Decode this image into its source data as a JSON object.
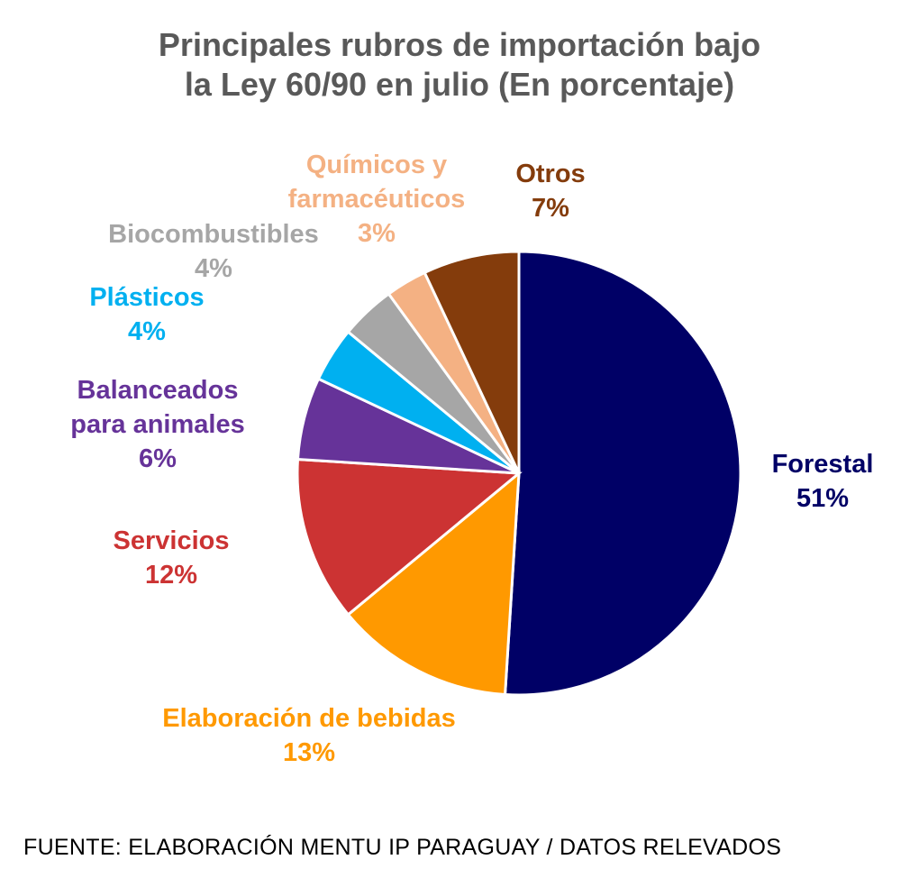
{
  "chart_data": {
    "type": "pie",
    "title_lines": [
      "Principales rubros de importación bajo",
      "la Ley 60/90 en julio (En porcentaje)"
    ],
    "start": "12 o'clock, clockwise",
    "slices": [
      {
        "name": "Forestal",
        "name_lines": [
          "Forestal"
        ],
        "value": 51,
        "label": "51%",
        "color": "#000066"
      },
      {
        "name": "Elaboración de bebidas",
        "name_lines": [
          "Elaboración de bebidas"
        ],
        "value": 13,
        "label": "13%",
        "color": "#FF9900"
      },
      {
        "name": "Servicios",
        "name_lines": [
          "Servicios"
        ],
        "value": 12,
        "label": "12%",
        "color": "#CC3333"
      },
      {
        "name": "Balanceados para animales",
        "name_lines": [
          "Balanceados",
          "para animales"
        ],
        "value": 6,
        "label": "6%",
        "color": "#663399"
      },
      {
        "name": "Plásticos",
        "name_lines": [
          "Plásticos"
        ],
        "value": 4,
        "label": "4%",
        "color": "#00B0F0"
      },
      {
        "name": "Biocombustibles",
        "name_lines": [
          "Biocombustibles"
        ],
        "value": 4,
        "label": "4%",
        "color": "#A6A6A6"
      },
      {
        "name": "Químicos y farmacéuticos",
        "name_lines": [
          "Químicos y",
          "farmacéuticos"
        ],
        "value": 3,
        "label": "3%",
        "color": "#F4B183"
      },
      {
        "name": "Otros",
        "name_lines": [
          "Otros"
        ],
        "value": 7,
        "label": "7%",
        "color": "#843C0C"
      }
    ]
  },
  "footer": "FUENTE: ELABORACIÓN MENTU IP PARAGUAY / DATOS RELEVADOS"
}
